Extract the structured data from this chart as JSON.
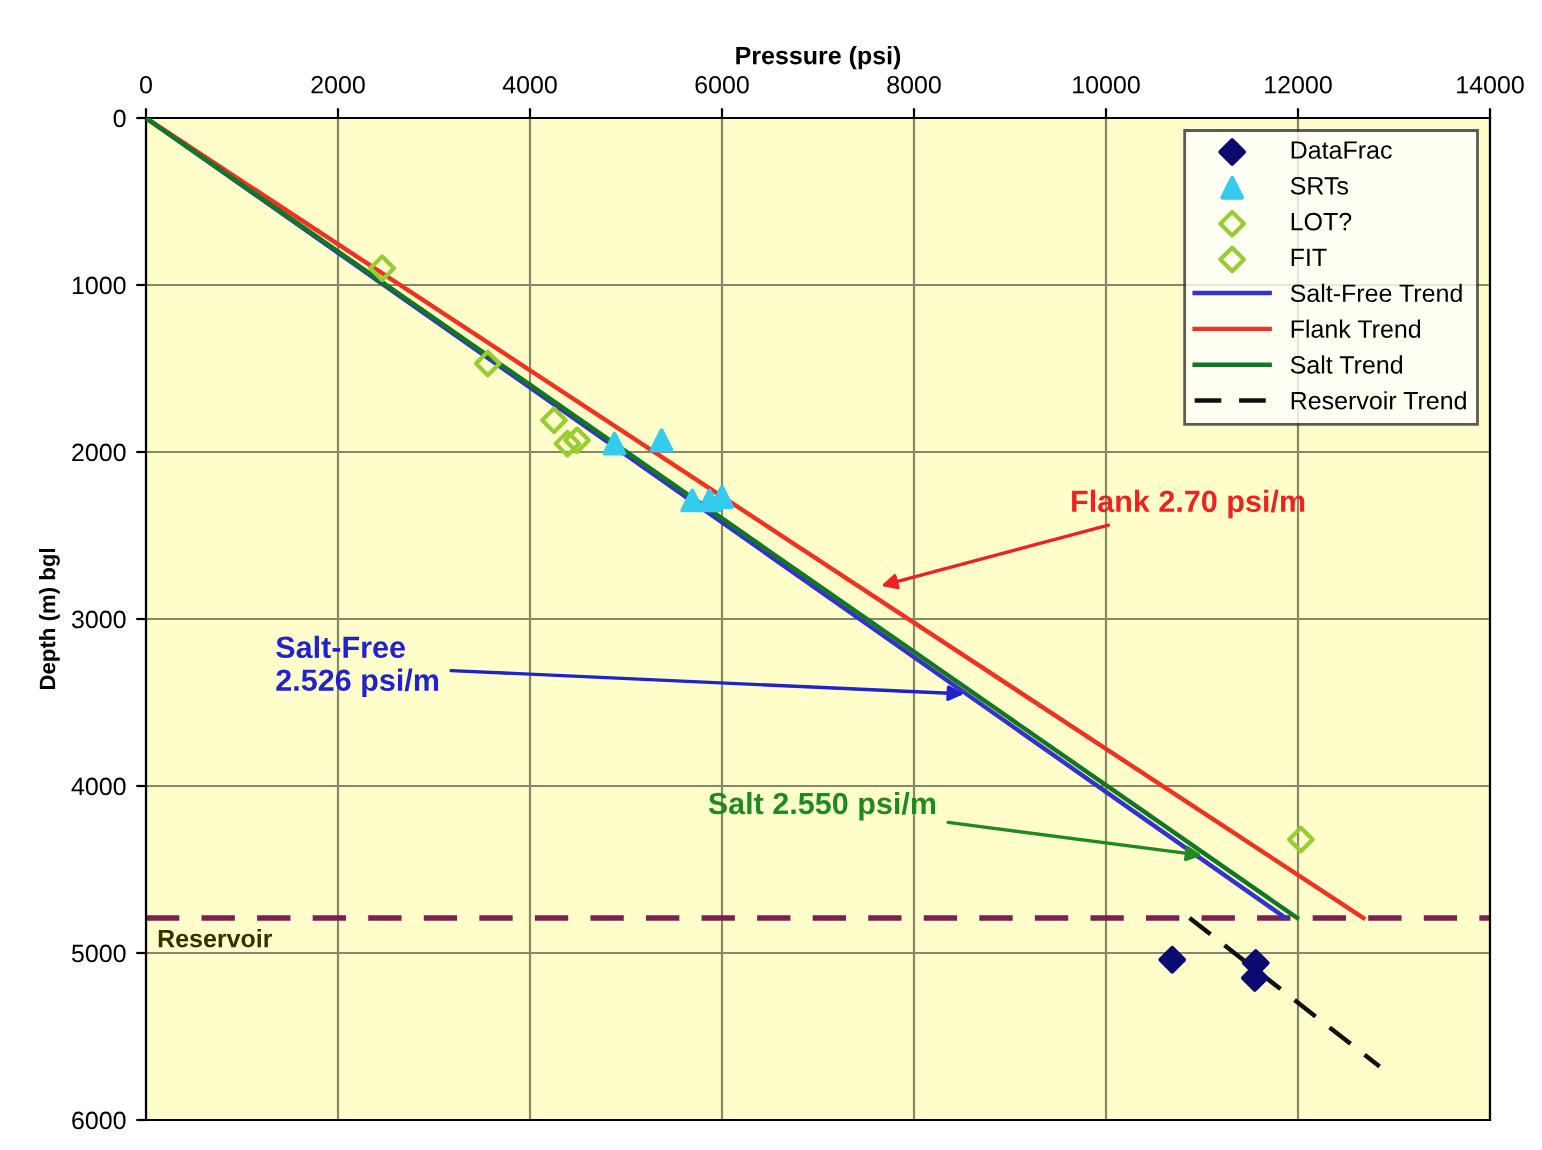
{
  "chart_data": {
    "type": "scatter",
    "xlabel": "Pressure (psi)",
    "ylabel": "Depth (m) bgl",
    "xlim": [
      0,
      14000
    ],
    "xticks": [
      0,
      2000,
      4000,
      6000,
      8000,
      10000,
      12000,
      14000
    ],
    "ylim": [
      6000,
      0
    ],
    "yticks": [
      0,
      1000,
      2000,
      3000,
      4000,
      5000,
      6000
    ],
    "grid": true,
    "legend": "top right",
    "series": [
      {
        "name": "DataFrac",
        "marker": "diamond",
        "color": "#0a0a70",
        "x": [
          10690,
          11560,
          11550
        ],
        "values": [
          5040,
          5060,
          5150
        ]
      },
      {
        "name": "SRTs",
        "marker": "triangle",
        "color": "#33ccee",
        "x": [
          4880,
          5370,
          5690,
          5870,
          6000
        ],
        "values": [
          1950,
          1930,
          2290,
          2290,
          2270
        ]
      },
      {
        "name": "LOT?",
        "marker": "diamond",
        "color": "#99cc33",
        "x": [
          2460,
          3560,
          4250,
          4390,
          4490
        ],
        "values": [
          900,
          1470,
          1810,
          1950,
          1930
        ]
      },
      {
        "name": "FIT",
        "marker": "diamond",
        "color": "#99cc33",
        "x": [
          12030
        ],
        "values": [
          4320
        ]
      },
      {
        "name": "Salt-Free Trend",
        "type": "line",
        "marker": "none",
        "line_style": "solid",
        "color": "#3333cc",
        "x": [
          0,
          11870
        ],
        "values": [
          0,
          4790
        ]
      },
      {
        "name": "Flank Trend",
        "type": "line",
        "marker": "none",
        "line_style": "solid",
        "color": "#ee3322",
        "x": [
          0,
          12680
        ],
        "values": [
          0,
          4790
        ]
      },
      {
        "name": "Salt Trend",
        "type": "line",
        "marker": "none",
        "line_style": "solid",
        "color": "#117722",
        "x": [
          0,
          11990
        ],
        "values": [
          0,
          4790
        ]
      },
      {
        "name": "Reservoir Trend",
        "type": "line",
        "marker": "none",
        "line_style": "dashed",
        "color": "#111111",
        "x": [
          10870,
          12850
        ],
        "values": [
          4790,
          5680
        ]
      }
    ],
    "ref_lines": [
      {
        "axis": "y",
        "value": 4790,
        "label": "Reservoir",
        "color": "#7b2050",
        "line_style": "dashed"
      }
    ],
    "annotations": [
      {
        "text": "Flank 2.70 psi/m",
        "x": 7600,
        "y": 2810
      },
      {
        "text": "Salt-Free\n2.526 psi/m",
        "x": 8580,
        "y": 3450
      },
      {
        "text": "Salt 2.550 psi/m",
        "x": 11060,
        "y": 4420
      }
    ]
  }
}
